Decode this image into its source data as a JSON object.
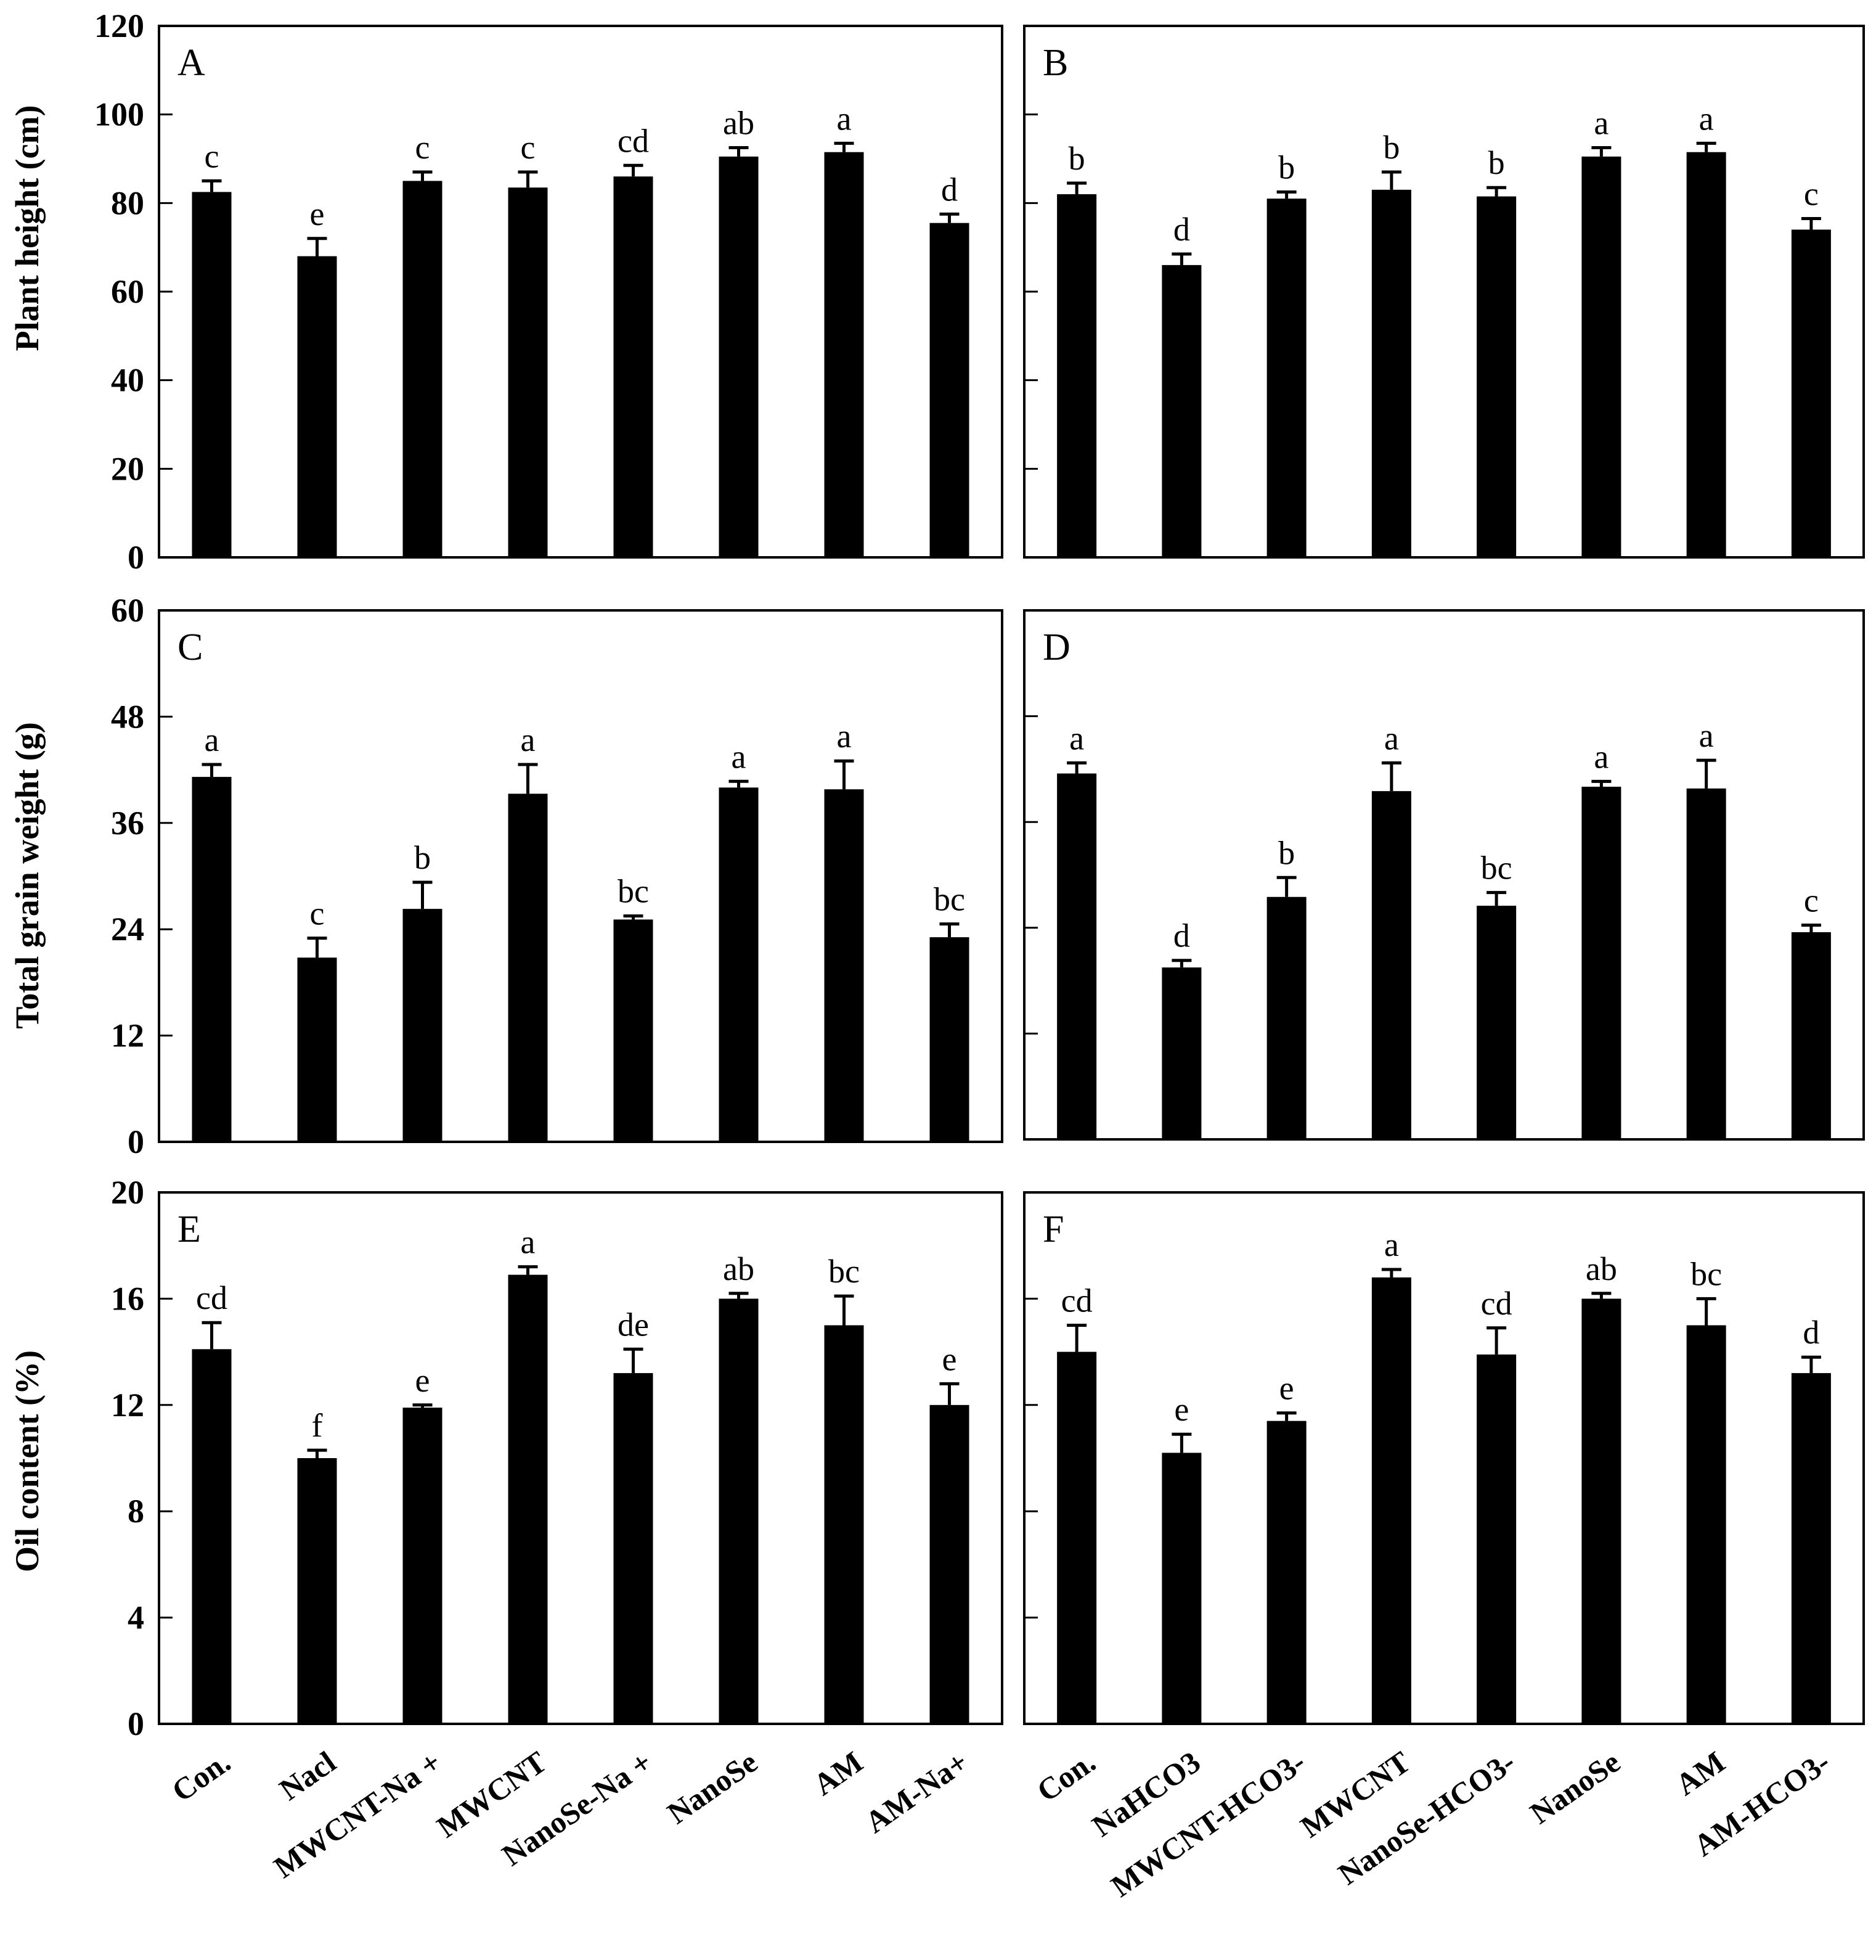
{
  "chart_data": [
    {
      "panel": "A",
      "type": "bar",
      "categories": [
        "Con.",
        "Nacl",
        "MWCNT-Na +",
        "MWCNT",
        "NanoSe-Na +",
        "NanoSe",
        "AM",
        "AM-Na+"
      ],
      "values": [
        82.5,
        68,
        85,
        83.5,
        86,
        90.5,
        91.5,
        75.5
      ],
      "errors": [
        2.5,
        4,
        2,
        3.5,
        2.5,
        2,
        2,
        2
      ],
      "letters": [
        "c",
        "e",
        "c",
        "c",
        "cd",
        "ab",
        "a",
        "d"
      ],
      "ylabel": "Plant height (cm)",
      "ylim": [
        0,
        120
      ],
      "yticks": [
        0,
        20,
        40,
        60,
        80,
        100,
        120
      ]
    },
    {
      "panel": "B",
      "type": "bar",
      "categories": [
        "Con.",
        "NaHCO3",
        "MWCNT-HCO3-",
        "MWCNT",
        "NanoSe-HCO3-",
        "NanoSe",
        "AM",
        "AM-HCO3-"
      ],
      "values": [
        82,
        66,
        81,
        83,
        81.5,
        90.5,
        91.5,
        74
      ],
      "errors": [
        2.5,
        2.5,
        1.5,
        4,
        2,
        2,
        2,
        2.5
      ],
      "letters": [
        "b",
        "d",
        "b",
        "b",
        "b",
        "a",
        "a",
        "c"
      ],
      "ylabel": "",
      "ylim": [
        0,
        120
      ],
      "yticks": [
        0,
        20,
        40,
        60,
        80,
        100,
        120
      ]
    },
    {
      "panel": "C",
      "type": "bar",
      "categories": [
        "Con.",
        "Nacl",
        "MWCNT-Na +",
        "MWCNT",
        "NanoSe-Na +",
        "NanoSe",
        "AM",
        "AM-Na+"
      ],
      "values": [
        41.2,
        20.8,
        26.3,
        39.3,
        25.1,
        40,
        39.8,
        23.1
      ],
      "errors": [
        1.4,
        2.2,
        3,
        3.3,
        0.4,
        0.7,
        3.2,
        1.5
      ],
      "letters": [
        "a",
        "c",
        "b",
        "a",
        "bc",
        "a",
        "a",
        "bc"
      ],
      "ylabel": "Total grain weight (g)",
      "ylim": [
        0,
        60
      ],
      "yticks": [
        0,
        12,
        24,
        36,
        48,
        60
      ]
    },
    {
      "panel": "D",
      "type": "bar",
      "categories": [
        "Con.",
        "NaHCO3",
        "MWCNT-HCO3-",
        "MWCNT",
        "NanoSe-HCO3-",
        "NanoSe",
        "AM",
        "AM-HCO3-"
      ],
      "values": [
        41.5,
        19.5,
        27.5,
        39.5,
        26.5,
        40,
        39.8,
        23.5
      ],
      "errors": [
        1.2,
        0.8,
        2.2,
        3.2,
        1.5,
        0.6,
        3.2,
        0.8
      ],
      "letters": [
        "a",
        "d",
        "b",
        "a",
        "bc",
        "a",
        "a",
        "c"
      ],
      "ylabel": "",
      "ylim": [
        0,
        60
      ],
      "yticks": [
        0,
        12,
        24,
        36,
        48,
        60
      ]
    },
    {
      "panel": "E",
      "type": "bar",
      "categories": [
        "Con.",
        "Nacl",
        "MWCNT-Na +",
        "MWCNT",
        "NanoSe-Na +",
        "NanoSe",
        "AM",
        "AM-Na+"
      ],
      "values": [
        14.1,
        10,
        11.9,
        16.9,
        13.2,
        16,
        15,
        12
      ],
      "errors": [
        1,
        0.3,
        0.1,
        0.3,
        0.9,
        0.2,
        1.1,
        0.8
      ],
      "letters": [
        "cd",
        "f",
        "e",
        "a",
        "de",
        "ab",
        "bc",
        "e"
      ],
      "ylabel": "Oil content (%)",
      "ylim": [
        0,
        20
      ],
      "yticks": [
        0,
        4,
        8,
        12,
        16,
        20
      ]
    },
    {
      "panel": "F",
      "type": "bar",
      "categories": [
        "Con.",
        "NaHCO3",
        "MWCNT-HCO3-",
        "MWCNT",
        "NanoSe-HCO3-",
        "NanoSe",
        "AM",
        "AM-HCO3-"
      ],
      "values": [
        14,
        10.2,
        11.4,
        16.8,
        13.9,
        16,
        15,
        13.2
      ],
      "errors": [
        1,
        0.7,
        0.3,
        0.3,
        1,
        0.2,
        1,
        0.6
      ],
      "letters": [
        "cd",
        "e",
        "e",
        "a",
        "cd",
        "ab",
        "bc",
        "d"
      ],
      "ylabel": "",
      "ylim": [
        0,
        20
      ],
      "yticks": [
        0,
        4,
        8,
        12,
        16,
        20
      ]
    }
  ],
  "colors": {
    "bar": "#000000",
    "frame": "#000000",
    "background": "#ffffff"
  }
}
